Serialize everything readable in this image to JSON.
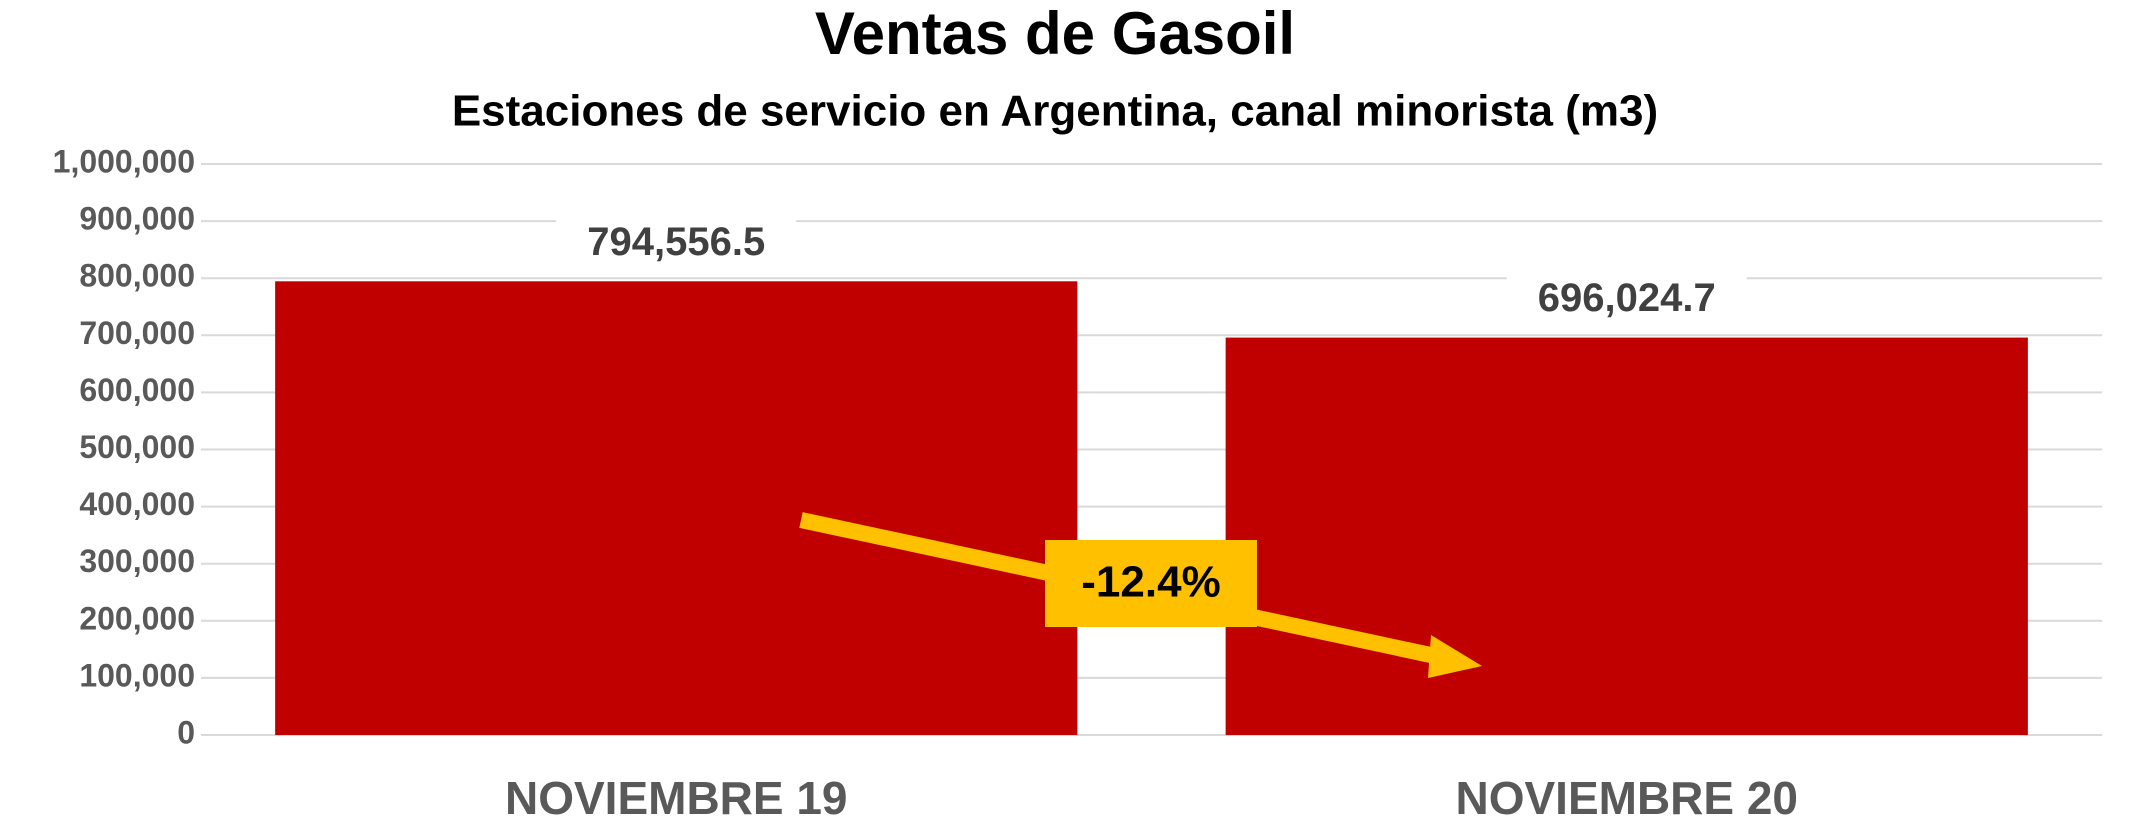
{
  "chart_data": {
    "type": "bar",
    "title": "Ventas de Gasoil",
    "subtitle": "Estaciones de servicio en Argentina, canal minorista (m3)",
    "categories": [
      "NOVIEMBRE 19",
      "NOVIEMBRE 20"
    ],
    "values": [
      794556.5,
      696024.7
    ],
    "value_labels": [
      "794,556.5",
      "696,024.7"
    ],
    "color": "#c00000",
    "ylim": [
      0,
      1000000
    ],
    "yticks": [
      0,
      {
        "value": 100000,
        "label": "100,000"
      },
      {
        "value": 200000,
        "label": "200,000"
      },
      {
        "value": 300000,
        "label": "300,000"
      },
      {
        "value": 400000,
        "label": "400,000"
      },
      {
        "value": 500000,
        "label": "500,000"
      },
      {
        "value": 600000,
        "label": "600,000"
      },
      {
        "value": 700000,
        "label": "700,000"
      },
      {
        "value": 800000,
        "label": "800,000"
      },
      {
        "value": 900000,
        "label": "900,000"
      },
      {
        "value": 1000000,
        "label": "1,000,000"
      }
    ],
    "grid": true,
    "annotation": "-12.4%"
  }
}
